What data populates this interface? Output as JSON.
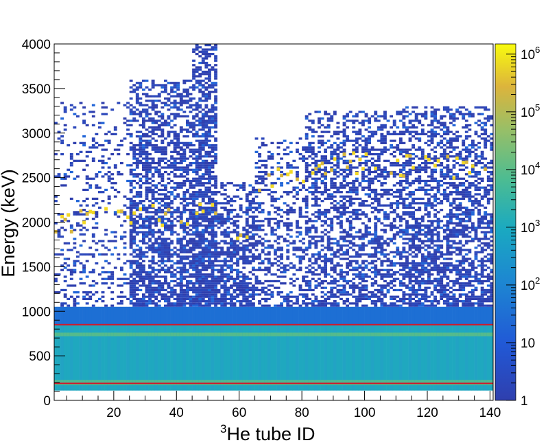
{
  "chart_data": {
    "type": "heatmap",
    "title": "",
    "xlabel_sup": "3",
    "xlabel_main": "He tube ID",
    "ylabel": "Energy (keV)",
    "xlim": [
      1,
      141
    ],
    "ylim": [
      0,
      4000
    ],
    "x_ticks": [
      20,
      40,
      60,
      80,
      100,
      120,
      140
    ],
    "y_ticks": [
      0,
      500,
      1000,
      1500,
      2000,
      2500,
      3000,
      3500,
      4000
    ],
    "z_scale": "log",
    "zlim": [
      1,
      1500000
    ],
    "z_ticks": [
      {
        "value": 1,
        "base": "1",
        "exp": ""
      },
      {
        "value": 10,
        "base": "10",
        "exp": ""
      },
      {
        "value": 100,
        "base": "10",
        "exp": "2"
      },
      {
        "value": 1000,
        "base": "10",
        "exp": "3"
      },
      {
        "value": 10000,
        "base": "10",
        "exp": "4"
      },
      {
        "value": 100000,
        "base": "10",
        "exp": "5"
      },
      {
        "value": 1000000,
        "base": "10",
        "exp": "6"
      }
    ],
    "cut_lines_keV": [
      191,
      850
    ],
    "peak_band_keV": [
      760,
      720
    ],
    "tube_groups": [
      {
        "from": 1,
        "to": 25,
        "max_energy_keV": 3350,
        "density": 0.25,
        "peak_keV": 2000
      },
      {
        "from": 25,
        "to": 45,
        "max_energy_keV": 3600,
        "density": 0.75,
        "peak_keV": 2050
      },
      {
        "from": 45,
        "to": 53,
        "max_energy_keV": 4000,
        "density": 0.95,
        "peak_keV": 2100
      },
      {
        "from": 53,
        "to": 65,
        "max_energy_keV": 2450,
        "density": 0.75,
        "peak_keV": 1800
      },
      {
        "from": 65,
        "to": 81,
        "max_energy_keV": 2950,
        "density": 0.45,
        "peak_keV": 2450
      },
      {
        "from": 81,
        "to": 111,
        "max_energy_keV": 3250,
        "density": 0.6,
        "peak_keV": 2650
      },
      {
        "from": 111,
        "to": 141,
        "max_energy_keV": 3300,
        "density": 0.7,
        "peak_keV": 2600
      }
    ],
    "grid": false,
    "legend": "colorbar-right"
  }
}
